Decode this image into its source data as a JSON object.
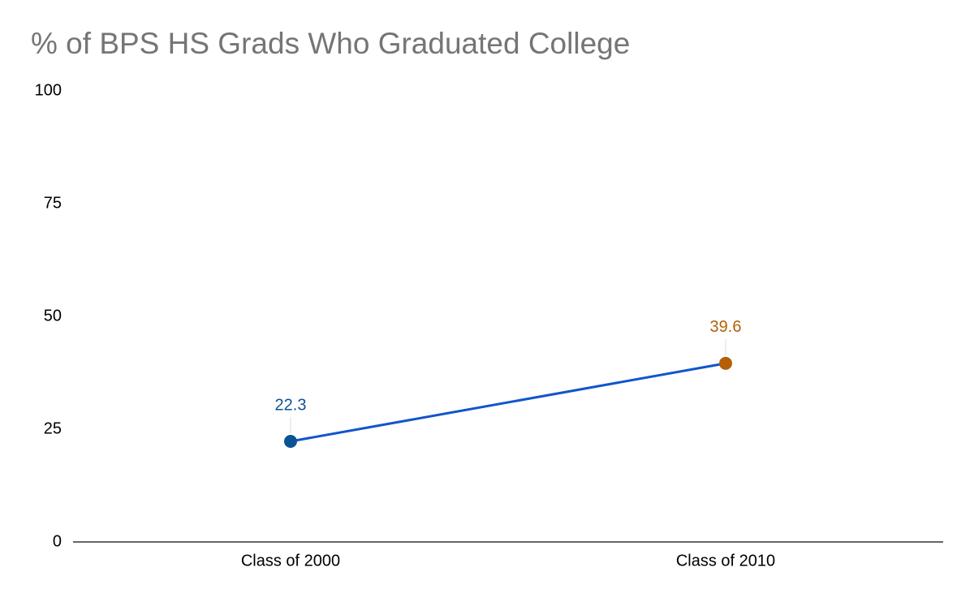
{
  "chart_data": {
    "type": "line",
    "title": "% of BPS HS Grads Who Graduated College",
    "categories": [
      "Class of 2000",
      "Class of 2010"
    ],
    "values": [
      22.3,
      39.6
    ],
    "color": "#1155cc",
    "point_colors": [
      "#0b5394",
      "#b45f06"
    ],
    "ylim": [
      0,
      100
    ],
    "yticks": [
      0,
      25,
      50,
      75,
      100
    ],
    "grid": false
  }
}
